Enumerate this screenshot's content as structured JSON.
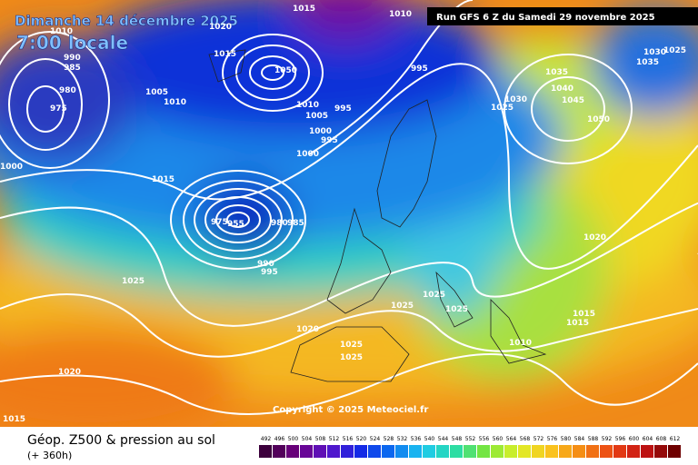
{
  "header": {
    "title": "Dimanche 14 décembre 2025",
    "time": "7:00 locale",
    "run": "Run GFS 6 Z du Samedi 29 novembre 2025"
  },
  "map": {
    "copyright": "Copyright © 2025 Meteociel.fr",
    "isobar_labels": [
      1010,
      990,
      985,
      980,
      975,
      1005,
      1010,
      1000,
      1015,
      1050,
      1010,
      1005,
      995,
      1000,
      995,
      1000,
      995,
      975,
      955,
      980,
      985,
      990,
      995,
      1025,
      1020,
      1025,
      1025,
      1020,
      1015,
      1025,
      1025,
      1025,
      1010,
      1015,
      1015,
      1020,
      1050,
      1045,
      1040,
      1035,
      1030,
      1025,
      1030,
      1035,
      1025,
      1015,
      1020,
      1015,
      1010
    ]
  },
  "footer": {
    "title": "Géop. Z500 & pression au sol",
    "range": "(+ 360h)",
    "scale": [
      492,
      496,
      500,
      504,
      508,
      512,
      516,
      520,
      524,
      528,
      532,
      536,
      540,
      544,
      548,
      552,
      556,
      560,
      564,
      568,
      572,
      576,
      580,
      584,
      588,
      592,
      596,
      600,
      604,
      608,
      612
    ]
  }
}
